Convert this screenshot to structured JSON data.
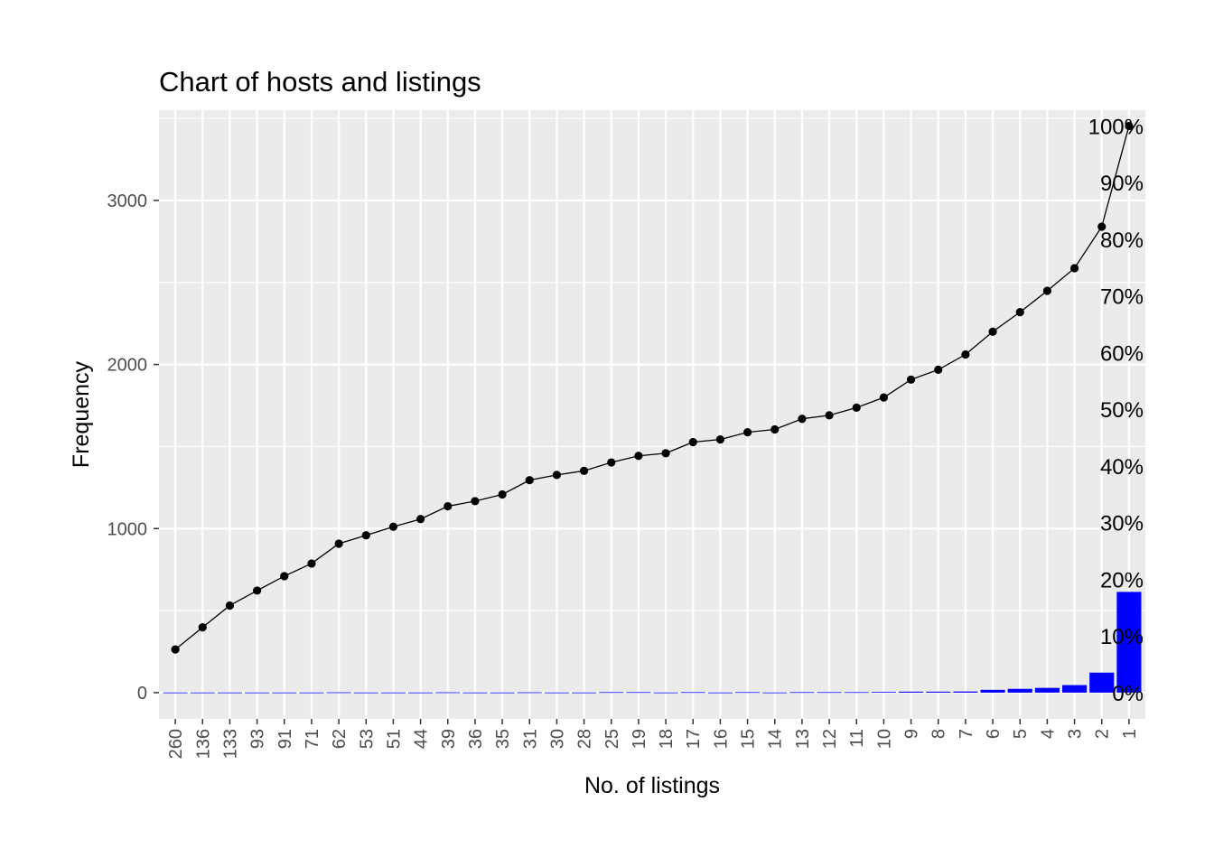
{
  "chart_data": {
    "type": "bar",
    "title": "Chart of hosts and listings",
    "xlabel": "No. of listings",
    "ylabel": "Frequency",
    "categories": [
      "260",
      "136",
      "133",
      "93",
      "91",
      "71",
      "62",
      "53",
      "51",
      "44",
      "39",
      "36",
      "35",
      "31",
      "30",
      "28",
      "25",
      "19",
      "18",
      "17",
      "16",
      "15",
      "14",
      "13",
      "12",
      "11",
      "10",
      "9",
      "8",
      "7",
      "6",
      "5",
      "4",
      "3",
      "2",
      "1"
    ],
    "ylim": [
      -160,
      3550
    ],
    "y_ticks": [
      0,
      1000,
      2000,
      3000
    ],
    "grid": true,
    "legend": "none",
    "series": [
      {
        "type": "bar",
        "color": "#0000ff",
        "values": [
          1,
          1,
          1,
          1,
          1,
          1,
          2,
          1,
          1,
          1,
          2,
          1,
          1,
          2,
          1,
          1,
          3,
          3,
          1,
          3,
          1,
          3,
          1,
          3,
          3,
          3,
          4,
          6,
          6,
          7,
          17,
          23,
          29,
          46,
          122,
          614
        ]
      },
      {
        "type": "line",
        "color": "#000000",
        "values": [
          263,
          398,
          531,
          622,
          710,
          787,
          908,
          959,
          1011,
          1058,
          1136,
          1167,
          1208,
          1295,
          1327,
          1352,
          1403,
          1443,
          1459,
          1527,
          1543,
          1587,
          1604,
          1669,
          1690,
          1737,
          1799,
          1908,
          1968,
          2061,
          2200,
          2319,
          2449,
          2587,
          2840,
          3454
        ]
      }
    ],
    "secondary_axis": {
      "max_value": 3454,
      "tick_labels": [
        "0%",
        "10%",
        "20%",
        "30%",
        "40%",
        "50%",
        "60%",
        "70%",
        "80%",
        "90%",
        "100%"
      ]
    }
  }
}
